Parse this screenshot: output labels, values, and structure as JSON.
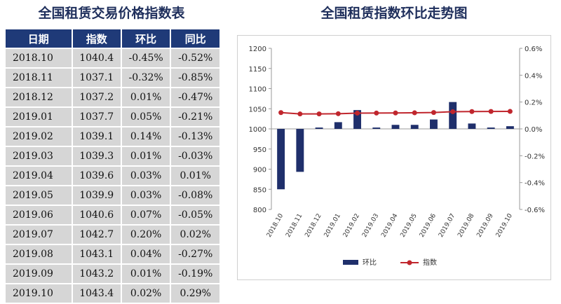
{
  "table": {
    "title": "全国租赁交易价格指数表",
    "headers": [
      "日期",
      "指数",
      "环比",
      "同比"
    ],
    "rows": [
      [
        "2018.10",
        "1040.4",
        "-0.45%",
        "-0.52%"
      ],
      [
        "2018.11",
        "1037.1",
        "-0.32%",
        "-0.85%"
      ],
      [
        "2018.12",
        "1037.2",
        "0.01%",
        "-0.47%"
      ],
      [
        "2019.01",
        "1037.7",
        "0.05%",
        "-0.21%"
      ],
      [
        "2019.02",
        "1039.1",
        "0.14%",
        "-0.13%"
      ],
      [
        "2019.03",
        "1039.3",
        "0.01%",
        "-0.03%"
      ],
      [
        "2019.04",
        "1039.6",
        "0.03%",
        "0.01%"
      ],
      [
        "2019.05",
        "1039.9",
        "0.03%",
        "-0.08%"
      ],
      [
        "2019.06",
        "1040.6",
        "0.07%",
        "-0.05%"
      ],
      [
        "2019.07",
        "1042.7",
        "0.20%",
        "0.02%"
      ],
      [
        "2019.08",
        "1043.1",
        "0.04%",
        "-0.27%"
      ],
      [
        "2019.09",
        "1043.2",
        "0.01%",
        "-0.19%"
      ],
      [
        "2019.10",
        "1043.4",
        "0.02%",
        "0.29%"
      ]
    ]
  },
  "chart_data": {
    "type": "bar",
    "title": "全国租赁指数环比走势图",
    "categories": [
      "2018.10",
      "2018.11",
      "2018.12",
      "2019.01",
      "2019.02",
      "2019.03",
      "2019.04",
      "2019.05",
      "2019.06",
      "2019.07",
      "2019.08",
      "2019.09",
      "2019.10"
    ],
    "series": [
      {
        "name": "环比",
        "kind": "bar",
        "axis": "right",
        "color": "#1f2f6b",
        "values": [
          -0.45,
          -0.32,
          0.01,
          0.05,
          0.14,
          0.01,
          0.03,
          0.03,
          0.07,
          0.2,
          0.04,
          0.01,
          0.02
        ]
      },
      {
        "name": "指数",
        "kind": "line",
        "axis": "left",
        "color": "#c0262d",
        "values": [
          1040.4,
          1037.1,
          1037.2,
          1037.7,
          1039.1,
          1039.3,
          1039.6,
          1039.9,
          1040.6,
          1042.7,
          1043.1,
          1043.2,
          1043.4
        ]
      }
    ],
    "y_left": {
      "min": 800,
      "max": 1200,
      "ticks": [
        "800",
        "850",
        "900",
        "950",
        "1000",
        "1050",
        "1100",
        "1150",
        "1200"
      ]
    },
    "y_right": {
      "min": -0.6,
      "max": 0.6,
      "ticks": [
        "-0.6%",
        "-0.4%",
        "-0.2%",
        "0.0%",
        "0.2%",
        "0.4%",
        "0.6%"
      ]
    },
    "grid": false,
    "legend_position": "bottom"
  }
}
